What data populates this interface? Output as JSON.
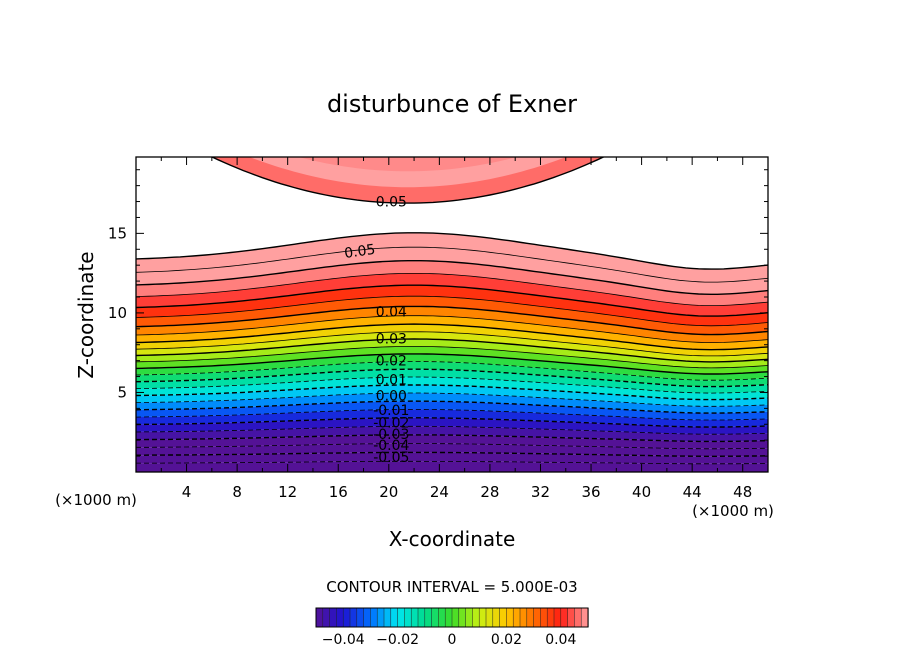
{
  "chart_data": {
    "type": "contour",
    "title": "disturbunce of Exner",
    "xlabel": "X-coordinate",
    "ylabel": "Z-coordinate",
    "x_unit_left": "(×1000 m)",
    "x_unit_right": "(×1000 m)",
    "xlim": [
      0,
      50
    ],
    "ylim": [
      0,
      19.8
    ],
    "x_ticks": [
      4,
      8,
      12,
      16,
      20,
      24,
      28,
      32,
      36,
      40,
      44,
      48
    ],
    "y_ticks": [
      5,
      10,
      15
    ],
    "contour_interval_text": "CONTOUR INTERVAL = 5.000E-03",
    "contour_interval": 0.005,
    "value_range": [
      -0.05,
      0.05
    ],
    "contour_labels": [
      "0.05",
      "0.05",
      "0.04",
      "0.03",
      "0.02",
      "0.01",
      "0.00",
      "-0.01",
      "-0.02",
      "-0.03",
      "-0.04",
      "-0.05"
    ],
    "colorbar": {
      "range": [
        -0.05,
        0.05
      ],
      "ticks": [
        -0.04,
        -0.02,
        0,
        0.02,
        0.04
      ],
      "tick_labels": [
        "−0.04",
        "−0.02",
        "0",
        "0.02",
        "0.04"
      ]
    },
    "negative_contours": "dashed",
    "colors": {
      "low": "#5a1a99",
      "mid": "#44dd22",
      "high": "#ff3020",
      "top": "#ff9a9a"
    }
  }
}
